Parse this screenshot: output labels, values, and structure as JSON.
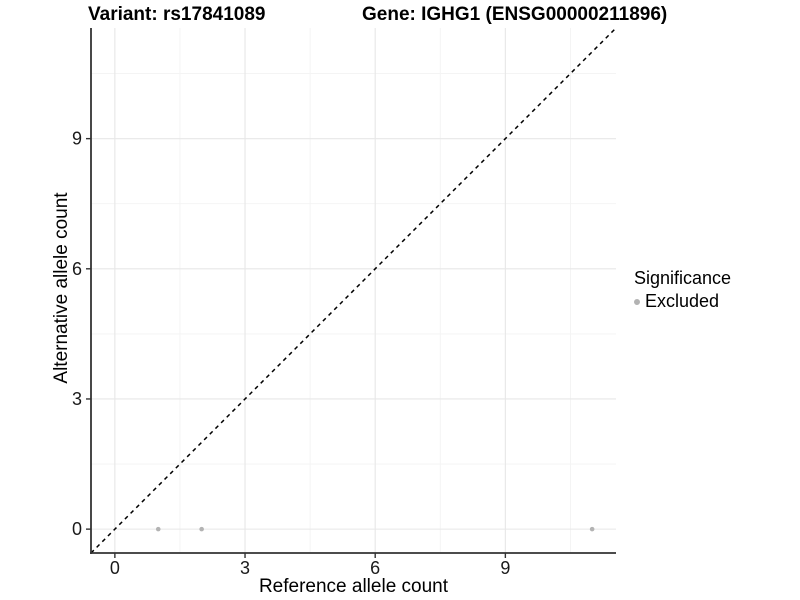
{
  "figure": {
    "title_left": "Variant: rs17841089",
    "title_right": "Gene: IGHG1 (ENSG00000211896)"
  },
  "chart_data": {
    "type": "scatter",
    "title": "Variant: rs17841089   Gene: IGHG1 (ENSG00000211896)",
    "xlabel": "Reference allele count",
    "ylabel": "Alternative allele count",
    "xlim": [
      -0.55,
      11.55
    ],
    "ylim": [
      -0.55,
      11.55
    ],
    "xticks": [
      0,
      3,
      6,
      9
    ],
    "yticks": [
      0,
      3,
      6,
      9
    ],
    "xticks_minor": [
      1.5,
      4.5,
      7.5,
      10.5
    ],
    "yticks_minor": [
      1.5,
      4.5,
      7.5,
      10.5
    ],
    "grid": "major+minor",
    "legend_position": "right",
    "series": [
      {
        "name": "Excluded",
        "marker": "circle",
        "color": "#b3b3b3",
        "points": [
          {
            "x": 1,
            "y": 0
          },
          {
            "x": 2,
            "y": 0
          },
          {
            "x": 11,
            "y": 0
          }
        ]
      }
    ],
    "reference_line": {
      "kind": "identity",
      "equation": "y = x",
      "style": "dashed",
      "color": "#000000"
    },
    "legend": {
      "title": "Significance",
      "items": [
        {
          "label": "Excluded",
          "color": "#b3b3b3"
        }
      ]
    }
  },
  "colors": {
    "background": "#ffffff",
    "grid_major": "#e7e7e7",
    "grid_minor": "#f3f3f3",
    "axis_line": "#333333",
    "tick_text": "#1a1a1a",
    "title_text": "#000000"
  }
}
